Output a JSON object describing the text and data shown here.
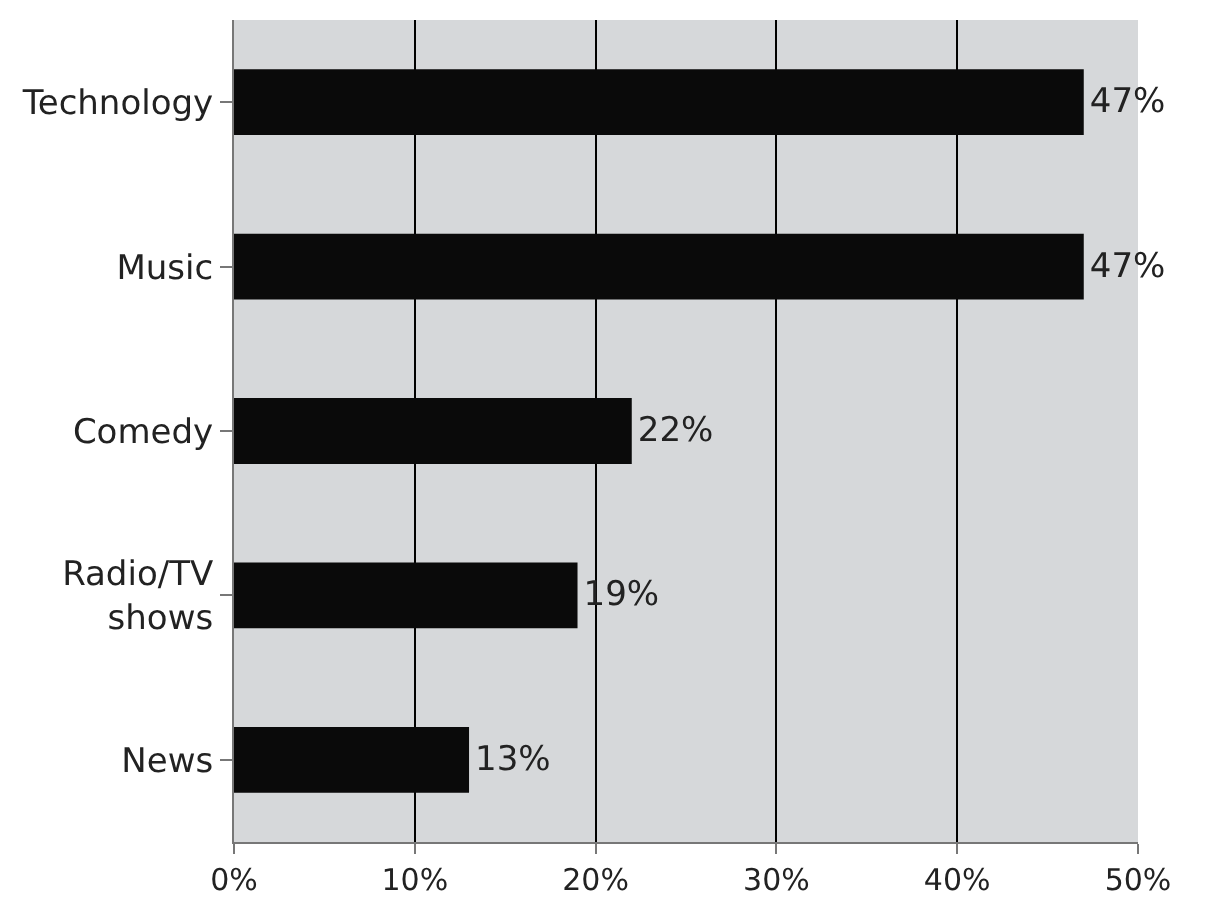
{
  "chart_data": {
    "type": "bar",
    "orientation": "horizontal",
    "categories": [
      "Technology",
      "Music",
      "Comedy",
      "Radio/TV shows",
      "News"
    ],
    "values": [
      47,
      47,
      22,
      19,
      13
    ],
    "value_labels": [
      "47%",
      "47%",
      "22%",
      "19%",
      "13%"
    ],
    "color": "#0a0a0a",
    "xlim": [
      0,
      50
    ],
    "xticks": [
      {
        "value": 0,
        "label": "0%"
      },
      {
        "value": 10,
        "label": "10%"
      },
      {
        "value": 20,
        "label": "20%"
      },
      {
        "value": 30,
        "label": "30%"
      },
      {
        "value": 40,
        "label": "40%"
      },
      {
        "value": 50,
        "label": "50%"
      }
    ],
    "grid": "x"
  }
}
